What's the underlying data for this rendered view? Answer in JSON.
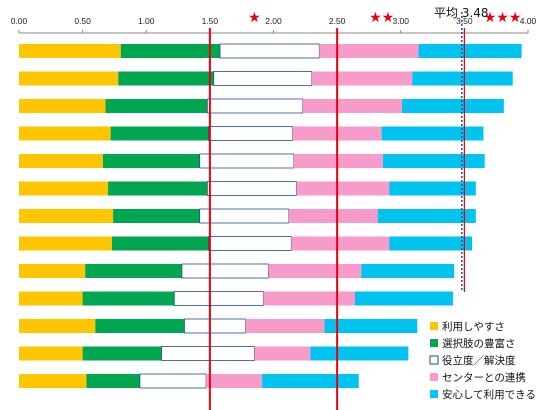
{
  "chart_data": {
    "type": "bar",
    "stacked": true,
    "orientation": "horizontal",
    "xlim": [
      0,
      4.0
    ],
    "x_ticks": [
      "0.00",
      "0.50",
      "1.00",
      "1.50",
      "2.00",
      "2.50",
      "3.00",
      "3.50",
      "4.00"
    ],
    "x_tick_values": [
      0,
      0.5,
      1.0,
      1.5,
      2.0,
      2.5,
      3.0,
      3.5,
      4.0
    ],
    "grid": false,
    "legend_position": "bottom-right",
    "series": [
      {
        "name": "利用しやすさ",
        "color": "#FFC600",
        "border": "none",
        "values": [
          0.8,
          0.78,
          0.68,
          0.72,
          0.66,
          0.7,
          0.74,
          0.73,
          0.52,
          0.5,
          0.6,
          0.5,
          0.53
        ]
      },
      {
        "name": "選択肢の豊富さ",
        "color": "#00A650",
        "border": "none",
        "values": [
          0.78,
          0.75,
          0.8,
          0.77,
          0.76,
          0.78,
          0.68,
          0.76,
          0.76,
          0.72,
          0.7,
          0.62,
          0.42
        ]
      },
      {
        "name": "役立度／解決度",
        "color": "#FFFFFF",
        "border": "#1F4E99",
        "values": [
          0.78,
          0.77,
          0.75,
          0.66,
          0.74,
          0.7,
          0.7,
          0.65,
          0.68,
          0.7,
          0.48,
          0.73,
          0.52
        ]
      },
      {
        "name": "センターとの連携",
        "color": "#F79BCB",
        "border": "none",
        "values": [
          0.78,
          0.79,
          0.78,
          0.7,
          0.7,
          0.73,
          0.7,
          0.77,
          0.73,
          0.72,
          0.62,
          0.44,
          0.44
        ]
      },
      {
        "name": "安心して利用できる",
        "color": "#00C3F0",
        "border": "none",
        "values": [
          0.81,
          0.79,
          0.8,
          0.8,
          0.8,
          0.68,
          0.77,
          0.65,
          0.73,
          0.77,
          0.73,
          0.77,
          0.76
        ]
      }
    ],
    "reference_lines": [
      {
        "value": 1.5,
        "color": "#E8000B",
        "style": "solid"
      },
      {
        "value": 2.5,
        "color": "#E8000B",
        "style": "solid"
      },
      {
        "value": 3.5,
        "color": "#E8000B",
        "style": "solid"
      },
      {
        "value": 3.48,
        "color": "#1F4E99",
        "style": "dotted"
      }
    ],
    "star_markers": [
      {
        "text": "★",
        "value": 1.85
      },
      {
        "text": "★★",
        "value": 2.85
      },
      {
        "text": "★★★",
        "value": 3.8
      }
    ],
    "average_label": "平均 3.48"
  }
}
